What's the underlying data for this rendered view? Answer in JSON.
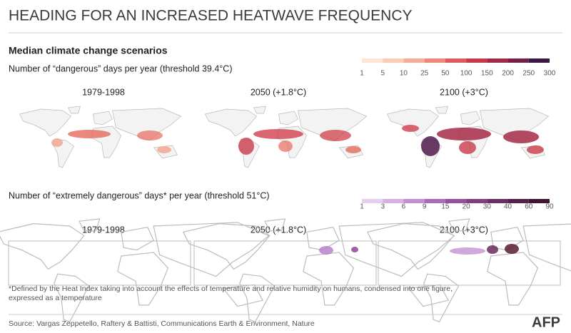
{
  "header": {
    "title": "HEADING FOR AN INCREASED HEATWAVE FREQUENCY"
  },
  "subtitle": "Median climate change scenarios",
  "sections": [
    {
      "label": "Number of  “dangerous” days per year (threshold 39.4°C)",
      "legend": [
        "1",
        "5",
        "10",
        "25",
        "50",
        "100",
        "150",
        "200",
        "250",
        "300"
      ],
      "colors": [
        "#fde6d6",
        "#fbcdb4",
        "#f6ad95",
        "#ee8777",
        "#de5a5c",
        "#c63a4b",
        "#a02a47",
        "#762048",
        "#3d1846"
      ],
      "maps": [
        {
          "period": "1979-1998"
        },
        {
          "period": "2050 (+1.8°C)"
        },
        {
          "period": "2100 (+3°C)"
        }
      ]
    },
    {
      "label": "Number of “extremely dangerous” days* per year (threshold 51°C)",
      "legend": [
        "1",
        "3",
        "6",
        "9",
        "15",
        "20",
        "30",
        "40",
        "60",
        "90"
      ],
      "colors": [
        "#e6cfee",
        "#d6b1e2",
        "#c290d3",
        "#ab6bbd",
        "#95509f",
        "#803d80",
        "#6b2d63",
        "#55204a",
        "#3f1530"
      ],
      "maps": [
        {
          "period": "1979-1998"
        },
        {
          "period": "2050 (+1.8°C)"
        },
        {
          "period": "2100 (+3°C)"
        }
      ]
    }
  ],
  "footnote": [
    "*Defined by the Heat Index taking into account the effects of temperature and relative humidity on humans, condensed into one figure,",
    "expressed as a temperature",
    ""
  ],
  "source": "Source: Vargas Zeppetello, Raftery & Battisti, Communications Earth & Environment, Nature",
  "logo": "AFP"
}
